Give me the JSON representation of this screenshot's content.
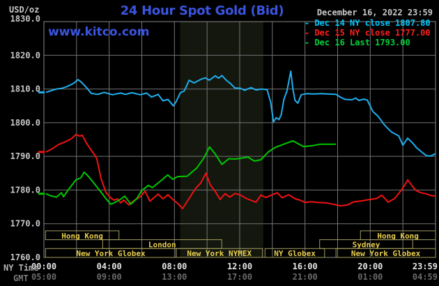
{
  "header": {
    "units": "USD/oz",
    "title": "24 Hour Spot Gold (Bid)",
    "datetime": "December 16, 2022 23:59",
    "watermark": "www.kitco.com"
  },
  "footer": {
    "ny_time": "NY Time",
    "gmt": "GMT"
  },
  "legend": [
    {
      "marker": "-",
      "label": "Dec 14 NY close 1807.80",
      "color": "#00c8ff"
    },
    {
      "marker": "-",
      "label": "Dec 15 NY close 1777.00",
      "color": "#ff1e1e"
    },
    {
      "marker": "-",
      "label": "Dec 16 Last 1793.00",
      "color": "#00d23c"
    }
  ],
  "colors": {
    "blue": "#3a55e0",
    "grid": "#757575",
    "plot_border": "#8a8a8a",
    "nymex_band": "#13170e",
    "session_border": "#a39d5e",
    "session_text": "#e8cf4e",
    "y_tick_text": "#c8c8c8",
    "ny_tick_text": "#e6e6e6",
    "gmt_tick_text": "#6a6a6a"
  },
  "chart_data": {
    "type": "line",
    "title": "24 Hour Spot Gold (Bid)",
    "ylabel": "USD/oz",
    "ylim": [
      1760,
      1830
    ],
    "y_tick_step": 10,
    "xlim_hours": [
      0,
      24
    ],
    "grid": "on",
    "legend_position": "top-right",
    "x_ticks": [
      {
        "h": 0,
        "ny": "00:00",
        "gmt": "05:00"
      },
      {
        "h": 4,
        "ny": "04:00",
        "gmt": "09:00"
      },
      {
        "h": 8,
        "ny": "08:00",
        "gmt": "13:00"
      },
      {
        "h": 12,
        "ny": "12:00",
        "gmt": "17:00"
      },
      {
        "h": 16,
        "ny": "16:00",
        "gmt": "21:00"
      },
      {
        "h": 20,
        "ny": "20:00",
        "gmt": "01:00"
      },
      {
        "h": 23.983,
        "ny": "23:59",
        "gmt": "04:59"
      }
    ],
    "nymex_band_hours": [
      8.35,
      13.45
    ],
    "sessions": [
      {
        "row": 0,
        "label": "Hong Kong",
        "start": 0.1,
        "end": 4.6
      },
      {
        "row": 0,
        "label": "Hong Kong",
        "start": 19.4,
        "end": 24
      },
      {
        "row": 1,
        "label": "London",
        "start": 3.6,
        "end": 10.9
      },
      {
        "row": 1,
        "label": "Sydney",
        "start": 16.9,
        "end": 22.6
      },
      {
        "row": 2,
        "label": "New York Globex",
        "start": 0.1,
        "end": 8.1
      },
      {
        "row": 2,
        "label": "New York NYMEX",
        "start": 8.1,
        "end": 13.4
      },
      {
        "row": 2,
        "label": "NY Globex",
        "start": 13.55,
        "end": 17.2
      },
      {
        "row": 2,
        "label": "New York Globex",
        "start": 17.9,
        "end": 24
      }
    ],
    "series": [
      {
        "name": "Dec 14",
        "close_label": "NY close 1807.80",
        "color": "#1fb0f0",
        "points": [
          [
            0.13,
            1809
          ],
          [
            0.3,
            1809.3
          ],
          [
            0.5,
            1809.6
          ],
          [
            0.77,
            1810
          ],
          [
            1.1,
            1810.2
          ],
          [
            1.41,
            1810.7
          ],
          [
            1.83,
            1811.7
          ],
          [
            2.09,
            1812.8
          ],
          [
            2.3,
            1812
          ],
          [
            2.56,
            1810.7
          ],
          [
            2.9,
            1808.7
          ],
          [
            3.3,
            1808.4
          ],
          [
            3.7,
            1809
          ],
          [
            4.2,
            1808.3
          ],
          [
            4.7,
            1808.8
          ],
          [
            5,
            1808.4
          ],
          [
            5.4,
            1808.9
          ],
          [
            5.9,
            1808.3
          ],
          [
            6.3,
            1808.8
          ],
          [
            6.6,
            1807.6
          ],
          [
            7,
            1808.4
          ],
          [
            7.3,
            1806.5
          ],
          [
            7.6,
            1806.9
          ],
          [
            7.93,
            1805
          ],
          [
            8.1,
            1806.2
          ],
          [
            8.36,
            1808.9
          ],
          [
            8.6,
            1809.4
          ],
          [
            8.9,
            1812.6
          ],
          [
            9.2,
            1811.8
          ],
          [
            9.63,
            1812.9
          ],
          [
            9.9,
            1813.3
          ],
          [
            10.14,
            1812.6
          ],
          [
            10.5,
            1813.9
          ],
          [
            10.7,
            1813.2
          ],
          [
            10.91,
            1814
          ],
          [
            11.2,
            1812.5
          ],
          [
            11.42,
            1811.7
          ],
          [
            11.7,
            1810.3
          ],
          [
            12.06,
            1810.2
          ],
          [
            12.3,
            1809.6
          ],
          [
            12.7,
            1810.4
          ],
          [
            13,
            1809.7
          ],
          [
            13.34,
            1810
          ],
          [
            13.68,
            1809.8
          ],
          [
            13.9,
            1806
          ],
          [
            14.07,
            1800.2
          ],
          [
            14.24,
            1801.5
          ],
          [
            14.4,
            1800.9
          ],
          [
            14.54,
            1802.3
          ],
          [
            14.71,
            1807
          ],
          [
            14.9,
            1809.5
          ],
          [
            15.13,
            1815.3
          ],
          [
            15.26,
            1810
          ],
          [
            15.39,
            1806.6
          ],
          [
            15.56,
            1805.8
          ],
          [
            15.77,
            1808.3
          ],
          [
            16.1,
            1808.6
          ],
          [
            16.54,
            1808.5
          ],
          [
            17,
            1808.6
          ],
          [
            17.39,
            1808.5
          ],
          [
            17.9,
            1808.4
          ],
          [
            18.2,
            1807.5
          ],
          [
            18.46,
            1806.9
          ],
          [
            18.88,
            1806.8
          ],
          [
            19.1,
            1807.3
          ],
          [
            19.31,
            1806.6
          ],
          [
            19.6,
            1807
          ],
          [
            19.82,
            1806.7
          ],
          [
            20.16,
            1803.3
          ],
          [
            20.46,
            1802
          ],
          [
            20.89,
            1799.2
          ],
          [
            21.31,
            1797.2
          ],
          [
            21.74,
            1796.1
          ],
          [
            22,
            1793.3
          ],
          [
            22.29,
            1795.4
          ],
          [
            22.59,
            1794
          ],
          [
            22.85,
            1792.5
          ],
          [
            23.15,
            1791.3
          ],
          [
            23.45,
            1790.2
          ],
          [
            23.7,
            1790.1
          ],
          [
            24,
            1790.8
          ]
        ]
      },
      {
        "name": "Dec 15",
        "close_label": "NY close 1777.00",
        "color": "#f21212",
        "points": [
          [
            0.13,
            1791.3
          ],
          [
            0.5,
            1792.2
          ],
          [
            0.9,
            1793.5
          ],
          [
            1.3,
            1794.3
          ],
          [
            1.7,
            1795.3
          ],
          [
            1.96,
            1796.5
          ],
          [
            2.2,
            1796
          ],
          [
            2.35,
            1796.3
          ],
          [
            2.6,
            1794
          ],
          [
            2.9,
            1791.8
          ],
          [
            3.1,
            1790.5
          ],
          [
            3.24,
            1789.3
          ],
          [
            3.5,
            1783.4
          ],
          [
            3.8,
            1779.3
          ],
          [
            4.1,
            1777.6
          ],
          [
            4.3,
            1777
          ],
          [
            4.5,
            1777.4
          ],
          [
            4.7,
            1776.2
          ],
          [
            4.9,
            1777
          ],
          [
            5.2,
            1775.6
          ],
          [
            5.5,
            1776.8
          ],
          [
            5.9,
            1778
          ],
          [
            6.2,
            1779.7
          ],
          [
            6.5,
            1776.7
          ],
          [
            7,
            1778.8
          ],
          [
            7.3,
            1777.4
          ],
          [
            7.6,
            1778.6
          ],
          [
            7.9,
            1777.2
          ],
          [
            8.2,
            1776
          ],
          [
            8.5,
            1774.5
          ],
          [
            8.9,
            1777.5
          ],
          [
            9.3,
            1780.5
          ],
          [
            9.6,
            1782
          ],
          [
            9.93,
            1785
          ],
          [
            10.2,
            1781.5
          ],
          [
            10.5,
            1779.6
          ],
          [
            10.8,
            1777.2
          ],
          [
            11.1,
            1778.9
          ],
          [
            11.4,
            1777.9
          ],
          [
            11.7,
            1779
          ],
          [
            12.06,
            1778.5
          ],
          [
            12.4,
            1777.5
          ],
          [
            13,
            1776.4
          ],
          [
            13.3,
            1778.5
          ],
          [
            13.6,
            1777.8
          ],
          [
            14,
            1778.6
          ],
          [
            14.3,
            1779.2
          ],
          [
            14.6,
            1777.7
          ],
          [
            15,
            1778.6
          ],
          [
            15.4,
            1777.4
          ],
          [
            15.7,
            1777
          ],
          [
            16,
            1776.3
          ],
          [
            16.4,
            1776.5
          ],
          [
            16.8,
            1776.3
          ],
          [
            17.3,
            1776.2
          ],
          [
            17.7,
            1775.8
          ],
          [
            18.2,
            1775.3
          ],
          [
            18.6,
            1775.6
          ],
          [
            19,
            1776.5
          ],
          [
            19.5,
            1776.8
          ],
          [
            20,
            1777.2
          ],
          [
            20.4,
            1777.5
          ],
          [
            20.7,
            1778.5
          ],
          [
            21.1,
            1776.4
          ],
          [
            21.5,
            1777.5
          ],
          [
            22,
            1780.6
          ],
          [
            22.3,
            1783
          ],
          [
            22.6,
            1781
          ],
          [
            22.8,
            1779.9
          ],
          [
            23.1,
            1779.2
          ],
          [
            23.4,
            1778.9
          ],
          [
            23.7,
            1778.4
          ],
          [
            24,
            1778.2
          ]
        ]
      },
      {
        "name": "Dec 16",
        "close_label": "Last 1793.00",
        "color": "#00c800",
        "points": [
          [
            0.13,
            1778.9
          ],
          [
            0.4,
            1778.3
          ],
          [
            0.77,
            1777.9
          ],
          [
            1.07,
            1779.2
          ],
          [
            1.2,
            1778
          ],
          [
            1.5,
            1780.1
          ],
          [
            1.96,
            1783
          ],
          [
            2.26,
            1783.6
          ],
          [
            2.47,
            1785.3
          ],
          [
            2.7,
            1784.2
          ],
          [
            3,
            1782.4
          ],
          [
            3.4,
            1780
          ],
          [
            3.84,
            1777.2
          ],
          [
            4.1,
            1775.8
          ],
          [
            4.3,
            1776.2
          ],
          [
            4.69,
            1777.2
          ],
          [
            4.95,
            1778.2
          ],
          [
            5.2,
            1776.6
          ],
          [
            5.33,
            1775.8
          ],
          [
            5.7,
            1777.5
          ],
          [
            5.97,
            1779.7
          ],
          [
            6.4,
            1781.4
          ],
          [
            6.65,
            1780.7
          ],
          [
            7.25,
            1783.1
          ],
          [
            7.59,
            1784.5
          ],
          [
            7.89,
            1783.2
          ],
          [
            8.2,
            1784
          ],
          [
            8.78,
            1784.1
          ],
          [
            9.38,
            1786.6
          ],
          [
            9.8,
            1789.5
          ],
          [
            10.15,
            1792.8
          ],
          [
            10.5,
            1790.7
          ],
          [
            10.91,
            1787.6
          ],
          [
            11.34,
            1789.3
          ],
          [
            11.7,
            1789.2
          ],
          [
            12.06,
            1789.4
          ],
          [
            12.5,
            1789.8
          ],
          [
            12.9,
            1788.6
          ],
          [
            13.3,
            1789
          ],
          [
            13.77,
            1791.4
          ],
          [
            14.2,
            1792.7
          ],
          [
            14.75,
            1793.7
          ],
          [
            15.26,
            1794.6
          ],
          [
            15.9,
            1792.9
          ],
          [
            16.5,
            1793.2
          ],
          [
            16.9,
            1793.6
          ],
          [
            17.9,
            1793.6
          ]
        ]
      }
    ]
  }
}
